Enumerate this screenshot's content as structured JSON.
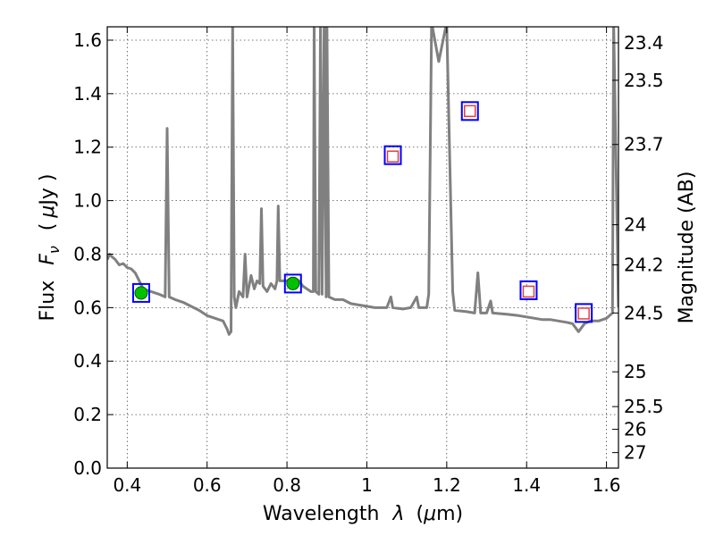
{
  "chart_data": {
    "type": "line",
    "xlabel_prefix": "Wavelength",
    "xlabel_symbol": "λ",
    "xlabel_unit_open": "(",
    "xlabel_unit_mu": "μ",
    "xlabel_unit_rest": "m)",
    "ylabel_prefix": "Flux",
    "ylabel_symbol": "F",
    "ylabel_sub": "ν",
    "ylabel_unit_open": "(",
    "ylabel_unit_mu": "μ",
    "ylabel_unit_rest": "Jy )",
    "y2label": "Magnitude (AB)",
    "xlim": [
      0.35,
      1.63
    ],
    "ylim": [
      0.0,
      1.65
    ],
    "xticks": [
      0.4,
      0.6,
      0.8,
      1.0,
      1.2,
      1.4,
      1.6
    ],
    "xtick_labels": [
      "0.4",
      "0.6",
      "0.8",
      "1",
      "1.2",
      "1.4",
      "1.6"
    ],
    "yticks": [
      0.0,
      0.2,
      0.4,
      0.6,
      0.8,
      1.0,
      1.2,
      1.4,
      1.6
    ],
    "ytick_labels": [
      "0.0",
      "0.2",
      "0.4",
      "0.6",
      "0.8",
      "1.0",
      "1.2",
      "1.4",
      "1.6"
    ],
    "mag_ticks": [
      {
        "flux": 1.59,
        "label": "23.4"
      },
      {
        "flux": 1.45,
        "label": "23.5"
      },
      {
        "flux": 1.21,
        "label": "23.7"
      },
      {
        "flux": 0.91,
        "label": "24"
      },
      {
        "flux": 0.76,
        "label": "24.2"
      },
      {
        "flux": 0.58,
        "label": "24.5"
      },
      {
        "flux": 0.36,
        "label": "25"
      },
      {
        "flux": 0.23,
        "label": "25.5"
      },
      {
        "flux": 0.145,
        "label": "26"
      },
      {
        "flux": 0.058,
        "label": "27"
      }
    ],
    "series": [
      {
        "name": "SED model spectrum",
        "color": "#808080",
        "points": [
          [
            0.35,
            0.78
          ],
          [
            0.356,
            0.8
          ],
          [
            0.362,
            0.79
          ],
          [
            0.37,
            0.78
          ],
          [
            0.38,
            0.76
          ],
          [
            0.39,
            0.765
          ],
          [
            0.4,
            0.75
          ],
          [
            0.41,
            0.745
          ],
          [
            0.42,
            0.73
          ],
          [
            0.43,
            0.7
          ],
          [
            0.44,
            0.67
          ],
          [
            0.46,
            0.66
          ],
          [
            0.48,
            0.65
          ],
          [
            0.495,
            0.64
          ],
          [
            0.5,
            1.27
          ],
          [
            0.505,
            0.64
          ],
          [
            0.52,
            0.63
          ],
          [
            0.54,
            0.62
          ],
          [
            0.56,
            0.605
          ],
          [
            0.58,
            0.59
          ],
          [
            0.6,
            0.57
          ],
          [
            0.62,
            0.56
          ],
          [
            0.64,
            0.55
          ],
          [
            0.65,
            0.52
          ],
          [
            0.655,
            0.5
          ],
          [
            0.66,
            0.51
          ],
          [
            0.664,
            1.7
          ],
          [
            0.668,
            0.64
          ],
          [
            0.672,
            0.6
          ],
          [
            0.68,
            0.66
          ],
          [
            0.69,
            0.64
          ],
          [
            0.695,
            0.8
          ],
          [
            0.7,
            0.64
          ],
          [
            0.71,
            0.72
          ],
          [
            0.718,
            0.67
          ],
          [
            0.725,
            0.7
          ],
          [
            0.732,
            0.69
          ],
          [
            0.736,
            0.97
          ],
          [
            0.74,
            0.68
          ],
          [
            0.75,
            0.66
          ],
          [
            0.76,
            0.69
          ],
          [
            0.77,
            0.67
          ],
          [
            0.775,
            0.7
          ],
          [
            0.778,
            0.98
          ],
          [
            0.782,
            0.7
          ],
          [
            0.79,
            0.7
          ],
          [
            0.8,
            0.7
          ],
          [
            0.81,
            0.71
          ],
          [
            0.82,
            0.71
          ],
          [
            0.83,
            0.7
          ],
          [
            0.84,
            0.68
          ],
          [
            0.85,
            0.67
          ],
          [
            0.86,
            0.66
          ],
          [
            0.866,
            0.66
          ],
          [
            0.868,
            1.7
          ],
          [
            0.872,
            0.66
          ],
          [
            0.88,
            0.65
          ],
          [
            0.884,
            1.7
          ],
          [
            0.888,
            0.65
          ],
          [
            0.893,
            1.7
          ],
          [
            0.898,
            0.64
          ],
          [
            0.9,
            1.7
          ],
          [
            0.905,
            0.64
          ],
          [
            0.92,
            0.63
          ],
          [
            0.94,
            0.63
          ],
          [
            0.96,
            0.615
          ],
          [
            0.98,
            0.61
          ],
          [
            1.0,
            0.605
          ],
          [
            1.02,
            0.6
          ],
          [
            1.05,
            0.6
          ],
          [
            1.06,
            0.64
          ],
          [
            1.065,
            0.6
          ],
          [
            1.09,
            0.595
          ],
          [
            1.11,
            0.6
          ],
          [
            1.125,
            0.64
          ],
          [
            1.13,
            0.6
          ],
          [
            1.15,
            0.6
          ],
          [
            1.155,
            0.65
          ],
          [
            1.162,
            1.7
          ],
          [
            1.18,
            1.52
          ],
          [
            1.2,
            1.7
          ],
          [
            1.215,
            0.66
          ],
          [
            1.22,
            0.59
          ],
          [
            1.25,
            0.585
          ],
          [
            1.27,
            0.58
          ],
          [
            1.278,
            0.73
          ],
          [
            1.285,
            0.58
          ],
          [
            1.3,
            0.58
          ],
          [
            1.31,
            0.625
          ],
          [
            1.315,
            0.58
          ],
          [
            1.35,
            0.575
          ],
          [
            1.38,
            0.57
          ],
          [
            1.4,
            0.565
          ],
          [
            1.42,
            0.56
          ],
          [
            1.44,
            0.555
          ],
          [
            1.46,
            0.555
          ],
          [
            1.48,
            0.55
          ],
          [
            1.5,
            0.545
          ],
          [
            1.515,
            0.54
          ],
          [
            1.53,
            0.51
          ],
          [
            1.545,
            0.54
          ],
          [
            1.56,
            0.55
          ],
          [
            1.58,
            0.55
          ],
          [
            1.6,
            0.56
          ],
          [
            1.615,
            0.58
          ],
          [
            1.618,
            1.7
          ],
          [
            1.63,
            0.6
          ]
        ]
      },
      {
        "name": "model photometry",
        "marker": "square",
        "color": "#0000ff",
        "points": [
          [
            0.435,
            0.655
          ],
          [
            0.815,
            0.69
          ],
          [
            1.065,
            1.17
          ],
          [
            1.258,
            1.335
          ],
          [
            1.405,
            0.665
          ],
          [
            1.543,
            0.58
          ]
        ]
      },
      {
        "name": "observed photometry (detected)",
        "marker": "circle",
        "color": "#00c000",
        "points": [
          [
            0.435,
            0.655
          ],
          [
            0.815,
            0.69
          ]
        ]
      },
      {
        "name": "observed photometry (open)",
        "marker": "open-square",
        "color": "#e04040",
        "points": [
          [
            1.065,
            1.165
          ],
          [
            1.258,
            1.335
          ],
          [
            1.405,
            0.66
          ],
          [
            1.543,
            0.578
          ]
        ]
      }
    ]
  }
}
